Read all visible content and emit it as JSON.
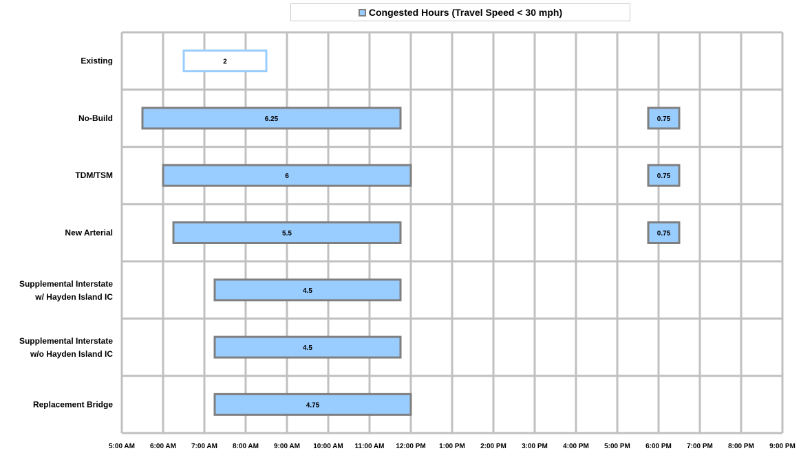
{
  "chart_data": {
    "type": "bar",
    "orientation": "horizontal",
    "title": "",
    "legend": {
      "label": "Congested Hours (Travel Speed < 30 mph)",
      "position": "top"
    },
    "colors": {
      "bar_fill": "#99ccff",
      "bar_stroke": "#7f7f7f",
      "highlight_stroke": "#99ccff",
      "grid": "#c0c0c0"
    },
    "grid": true,
    "xlim": [
      5,
      21
    ],
    "x_ticks": [
      "5:00 AM",
      "6:00 AM",
      "7:00 AM",
      "8:00 AM",
      "9:00 AM",
      "10:00 AM",
      "11:00 AM",
      "12:00 PM",
      "1:00 PM",
      "2:00 PM",
      "3:00 PM",
      "4:00 PM",
      "5:00 PM",
      "6:00 PM",
      "7:00 PM",
      "8:00 PM",
      "9:00 PM"
    ],
    "categories": [
      "Existing",
      "No-Build",
      "TDM/TSM",
      "New Arterial",
      "Supplemental Interstate w/ Hayden Island IC",
      "Supplemental Interstate w/o Hayden Island IC",
      "Replacement Bridge"
    ],
    "bars": [
      {
        "category": 0,
        "start": 6.5,
        "end": 8.5,
        "label": "2",
        "style": "outline"
      },
      {
        "category": 1,
        "start": 5.5,
        "end": 11.75,
        "label": "6.25"
      },
      {
        "category": 1,
        "start": 17.75,
        "end": 18.5,
        "label": "0.75"
      },
      {
        "category": 2,
        "start": 6.0,
        "end": 12.0,
        "label": "6"
      },
      {
        "category": 2,
        "start": 17.75,
        "end": 18.5,
        "label": "0.75"
      },
      {
        "category": 3,
        "start": 6.25,
        "end": 11.75,
        "label": "5.5"
      },
      {
        "category": 3,
        "start": 17.75,
        "end": 18.5,
        "label": "0.75"
      },
      {
        "category": 4,
        "start": 7.25,
        "end": 11.75,
        "label": "4.5"
      },
      {
        "category": 5,
        "start": 7.25,
        "end": 11.75,
        "label": "4.5"
      },
      {
        "category": 6,
        "start": 7.25,
        "end": 12.0,
        "label": "4.75"
      }
    ]
  }
}
